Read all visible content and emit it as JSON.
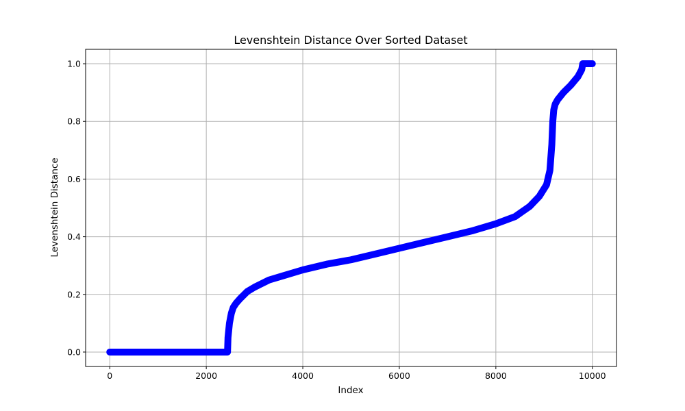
{
  "chart_data": {
    "type": "scatter",
    "title": "Levenshtein Distance Over Sorted Dataset",
    "xlabel": "Index",
    "ylabel": "Levenshtein Distance",
    "xlim": [
      -500,
      10500
    ],
    "ylim": [
      -0.05,
      1.05
    ],
    "grid": true,
    "marker_color": "#0000ff",
    "x_ticks": [
      0,
      2000,
      4000,
      6000,
      8000,
      10000
    ],
    "x_tick_labels": [
      "0",
      "2000",
      "4000",
      "6000",
      "8000",
      "10000"
    ],
    "y_ticks": [
      0.0,
      0.2,
      0.4,
      0.6,
      0.8,
      1.0
    ],
    "y_tick_labels": [
      "0.0",
      "0.2",
      "0.4",
      "0.6",
      "0.8",
      "1.0"
    ],
    "series": [
      {
        "x": [
          0,
          2440,
          2450,
          2480,
          2520,
          2560,
          2620,
          2700,
          2850,
          3000,
          3300,
          3600,
          4000,
          4500,
          5000,
          5500,
          6000,
          6500,
          7000,
          7500,
          8000,
          8400,
          8700,
          8900,
          9050,
          9120,
          9160,
          9180,
          9200,
          9230,
          9280,
          9400,
          9550,
          9700,
          9780,
          9800,
          10000
        ],
        "y": [
          0.0,
          0.0,
          0.05,
          0.1,
          0.135,
          0.155,
          0.17,
          0.185,
          0.21,
          0.225,
          0.25,
          0.265,
          0.285,
          0.305,
          0.32,
          0.34,
          0.36,
          0.38,
          0.4,
          0.42,
          0.445,
          0.47,
          0.505,
          0.54,
          0.58,
          0.63,
          0.72,
          0.8,
          0.84,
          0.86,
          0.875,
          0.9,
          0.925,
          0.955,
          0.98,
          1.0,
          1.0
        ]
      }
    ]
  }
}
